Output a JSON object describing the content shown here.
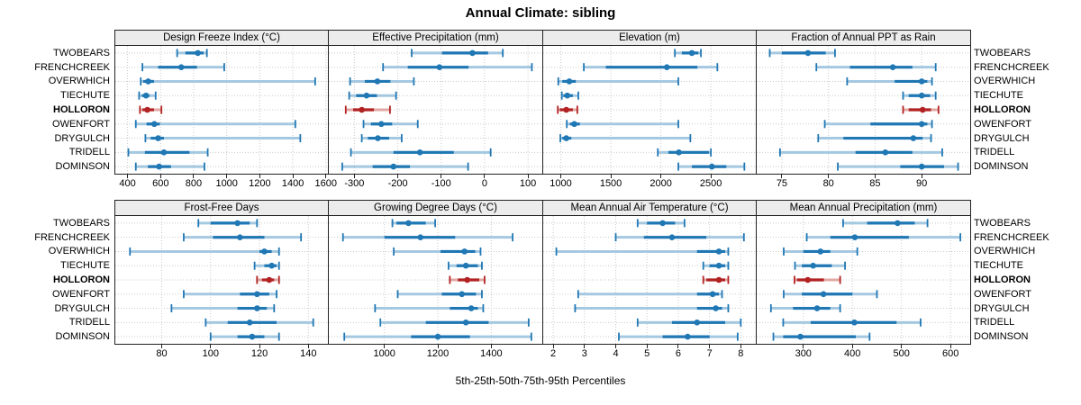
{
  "title": "Annual Climate: sibling",
  "caption": "5th-25th-50th-75th-95th Percentiles",
  "stations": [
    "TWOBEARS",
    "FRENCHCREEK",
    "OVERWHICH",
    "TIECHUTE",
    "HOLLORON",
    "OWENFORT",
    "DRYGULCH",
    "TRIDELL",
    "DOMINSON"
  ],
  "highlight_station": "HOLLORON",
  "colors": {
    "series_blue": "#1F77B4",
    "series_blue_light": "#A5C8E1",
    "highlight_red": "#B22222",
    "highlight_red_light": "#E2A9A4",
    "strip_bg": "#ECECEC",
    "panel_border": "#222222",
    "grid": "#C9C9C9"
  },
  "chart_data": [
    {
      "type": "dotplot-interval",
      "row": 0,
      "col": 0,
      "title": "Design Freeze Index (°C)",
      "xlim": [
        326,
        1612
      ],
      "ticks": [
        400,
        600,
        800,
        1000,
        1200,
        1400,
        1600
      ],
      "percentiles": [
        5,
        25,
        50,
        75,
        95
      ],
      "grid": "dotted",
      "legend_position": "none",
      "series": [
        {
          "station": "TWOBEARS",
          "values": [
            700,
            750,
            825,
            860,
            880
          ]
        },
        {
          "station": "FRENCHCREEK",
          "values": [
            490,
            585,
            725,
            820,
            985
          ]
        },
        {
          "station": "OVERWHICH",
          "values": [
            480,
            495,
            525,
            560,
            1535
          ]
        },
        {
          "station": "TIECHUTE",
          "values": [
            470,
            487,
            512,
            532,
            570
          ]
        },
        {
          "station": "HOLLORON",
          "values": [
            475,
            490,
            520,
            560,
            605
          ]
        },
        {
          "station": "OWENFORT",
          "values": [
            450,
            515,
            562,
            595,
            1415
          ]
        },
        {
          "station": "DRYGULCH",
          "values": [
            508,
            540,
            585,
            620,
            1445
          ]
        },
        {
          "station": "TRIDELL",
          "values": [
            405,
            505,
            620,
            775,
            885
          ]
        },
        {
          "station": "DOMINSON",
          "values": [
            450,
            523,
            591,
            663,
            865
          ]
        }
      ]
    },
    {
      "type": "dotplot-interval",
      "row": 0,
      "col": 1,
      "title": "Effective Precipitation (mm)",
      "xlim": [
        -359,
        133
      ],
      "ticks": [
        -300,
        -200,
        -100,
        0,
        100
      ],
      "percentiles": [
        5,
        25,
        50,
        75,
        95
      ],
      "grid": "dotted",
      "legend_position": "none",
      "series": [
        {
          "station": "TWOBEARS",
          "values": [
            -168,
            -98,
            -28,
            8,
            42
          ]
        },
        {
          "station": "FRENCHCREEK",
          "values": [
            -234,
            -177,
            -104,
            -37,
            109
          ]
        },
        {
          "station": "OVERWHICH",
          "values": [
            -310,
            -276,
            -247,
            -217,
            -163
          ]
        },
        {
          "station": "TIECHUTE",
          "values": [
            -312,
            -296,
            -272,
            -248,
            -204
          ]
        },
        {
          "station": "HOLLORON",
          "values": [
            -320,
            -303,
            -283,
            -255,
            -218
          ]
        },
        {
          "station": "OWENFORT",
          "values": [
            -279,
            -262,
            -238,
            -213,
            -154
          ]
        },
        {
          "station": "DRYGULCH",
          "values": [
            -283,
            -269,
            -246,
            -220,
            -191
          ]
        },
        {
          "station": "TRIDELL",
          "values": [
            -308,
            -210,
            -149,
            -71,
            14
          ]
        },
        {
          "station": "DOMINSON",
          "values": [
            -328,
            -258,
            -210,
            -172,
            -38
          ]
        }
      ]
    },
    {
      "type": "dotplot-interval",
      "row": 0,
      "col": 2,
      "title": "Elevation (m)",
      "xlim": [
        824,
        2949
      ],
      "ticks": [
        1000,
        1500,
        2000,
        2500
      ],
      "percentiles": [
        5,
        25,
        50,
        75,
        95
      ],
      "grid": "dotted",
      "legend_position": "none",
      "series": [
        {
          "station": "TWOBEARS",
          "values": [
            2140,
            2210,
            2310,
            2375,
            2400
          ]
        },
        {
          "station": "FRENCHCREEK",
          "values": [
            1230,
            1450,
            2060,
            2365,
            2565
          ]
        },
        {
          "station": "OVERWHICH",
          "values": [
            975,
            1015,
            1085,
            1150,
            2175
          ]
        },
        {
          "station": "TIECHUTE",
          "values": [
            1010,
            1025,
            1065,
            1120,
            1175
          ]
        },
        {
          "station": "HOLLORON",
          "values": [
            970,
            990,
            1055,
            1120,
            1165
          ]
        },
        {
          "station": "OWENFORT",
          "values": [
            1060,
            1090,
            1135,
            1190,
            2175
          ]
        },
        {
          "station": "DRYGULCH",
          "values": [
            995,
            1015,
            1055,
            1105,
            2295
          ]
        },
        {
          "station": "TRIDELL",
          "values": [
            1970,
            2075,
            2180,
            2480,
            2500
          ]
        },
        {
          "station": "DOMINSON",
          "values": [
            2175,
            2310,
            2510,
            2655,
            2835
          ]
        }
      ]
    },
    {
      "type": "dotplot-interval",
      "row": 0,
      "col": 3,
      "title": "Fraction of Annual PPT as Rain",
      "xlim": [
        72.3,
        95.2
      ],
      "ticks": [
        75,
        80,
        85,
        90
      ],
      "percentiles": [
        5,
        25,
        50,
        75,
        95
      ],
      "grid": "dotted",
      "legend_position": "none",
      "series": [
        {
          "station": "TWOBEARS",
          "values": [
            73.7,
            75.0,
            77.8,
            79.7,
            80.7
          ]
        },
        {
          "station": "FRENCHCREEK",
          "values": [
            78.7,
            82.3,
            86.9,
            89.0,
            91.5
          ]
        },
        {
          "station": "OVERWHICH",
          "values": [
            82.0,
            87.1,
            90.0,
            90.6,
            91.1
          ]
        },
        {
          "station": "TIECHUTE",
          "values": [
            88.0,
            88.6,
            90.0,
            90.9,
            91.5
          ]
        },
        {
          "station": "HOLLORON",
          "values": [
            88.0,
            88.6,
            90.1,
            91.0,
            91.8
          ]
        },
        {
          "station": "OWENFORT",
          "values": [
            79.6,
            84.5,
            90.0,
            90.6,
            91.1
          ]
        },
        {
          "station": "DRYGULCH",
          "values": [
            78.9,
            81.6,
            89.1,
            90.1,
            91.0
          ]
        },
        {
          "station": "TRIDELL",
          "values": [
            74.8,
            82.9,
            86.1,
            89.0,
            92.2
          ]
        },
        {
          "station": "DOMINSON",
          "values": [
            81.0,
            87.7,
            90.0,
            92.4,
            93.9
          ]
        }
      ]
    },
    {
      "type": "dotplot-interval",
      "row": 1,
      "col": 0,
      "title": "Frost-Free Days",
      "xlim": [
        61,
        148
      ],
      "ticks": [
        80,
        100,
        120,
        140
      ],
      "percentiles": [
        5,
        25,
        50,
        75,
        95
      ],
      "grid": "dotted",
      "legend_position": "none",
      "series": [
        {
          "station": "TWOBEARS",
          "values": [
            95,
            100,
            111,
            116,
            119
          ]
        },
        {
          "station": "FRENCHCREEK",
          "values": [
            89,
            101,
            112,
            122,
            137
          ]
        },
        {
          "station": "OVERWHICH",
          "values": [
            67,
            120,
            122,
            125,
            128
          ]
        },
        {
          "station": "TIECHUTE",
          "values": [
            118,
            122,
            125,
            127,
            128
          ]
        },
        {
          "station": "HOLLORON",
          "values": [
            119,
            121,
            124,
            126,
            128
          ]
        },
        {
          "station": "OWENFORT",
          "values": [
            89,
            112,
            119,
            124,
            127
          ]
        },
        {
          "station": "DRYGULCH",
          "values": [
            84,
            111,
            119,
            123,
            126
          ]
        },
        {
          "station": "TRIDELL",
          "values": [
            98,
            107,
            116,
            127,
            142
          ]
        },
        {
          "station": "DOMINSON",
          "values": [
            100,
            111,
            117,
            122,
            128
          ]
        }
      ]
    },
    {
      "type": "dotplot-interval",
      "row": 1,
      "col": 1,
      "title": "Growing Degree Days (°C)",
      "xlim": [
        792,
        1591
      ],
      "ticks": [
        1000,
        1200,
        1400
      ],
      "percentiles": [
        5,
        25,
        50,
        75,
        95
      ],
      "grid": "dotted",
      "legend_position": "none",
      "series": [
        {
          "station": "TWOBEARS",
          "values": [
            1030,
            1045,
            1090,
            1155,
            1190
          ]
        },
        {
          "station": "FRENCHCREEK",
          "values": [
            845,
            1000,
            1135,
            1265,
            1480
          ]
        },
        {
          "station": "OVERWHICH",
          "values": [
            1035,
            1210,
            1300,
            1340,
            1360
          ]
        },
        {
          "station": "TIECHUTE",
          "values": [
            1240,
            1270,
            1305,
            1350,
            1365
          ]
        },
        {
          "station": "HOLLORON",
          "values": [
            1245,
            1275,
            1310,
            1355,
            1375
          ]
        },
        {
          "station": "OWENFORT",
          "values": [
            1050,
            1215,
            1290,
            1343,
            1365
          ]
        },
        {
          "station": "DRYGULCH",
          "values": [
            965,
            1245,
            1325,
            1350,
            1370
          ]
        },
        {
          "station": "TRIDELL",
          "values": [
            985,
            1155,
            1305,
            1390,
            1540
          ]
        },
        {
          "station": "DOMINSON",
          "values": [
            850,
            1100,
            1200,
            1320,
            1550
          ]
        }
      ]
    },
    {
      "type": "dotplot-interval",
      "row": 1,
      "col": 2,
      "title": "Mean Annual Air Temperature (°C)",
      "xlim": [
        1.68,
        8.48
      ],
      "ticks": [
        2,
        3,
        4,
        5,
        6,
        7,
        8
      ],
      "percentiles": [
        5,
        25,
        50,
        75,
        95
      ],
      "grid": "dotted",
      "legend_position": "none",
      "series": [
        {
          "station": "TWOBEARS",
          "values": [
            4.7,
            5.0,
            5.5,
            5.9,
            6.2
          ]
        },
        {
          "station": "FRENCHCREEK",
          "values": [
            4.0,
            4.9,
            5.8,
            6.9,
            8.1
          ]
        },
        {
          "station": "OVERWHICH",
          "values": [
            2.1,
            6.6,
            7.3,
            7.5,
            7.6
          ]
        },
        {
          "station": "TIECHUTE",
          "values": [
            6.8,
            7.0,
            7.3,
            7.5,
            7.6
          ]
        },
        {
          "station": "HOLLORON",
          "values": [
            6.8,
            6.9,
            7.3,
            7.5,
            7.6
          ]
        },
        {
          "station": "OWENFORT",
          "values": [
            2.8,
            6.6,
            7.1,
            7.3,
            7.4
          ]
        },
        {
          "station": "DRYGULCH",
          "values": [
            2.7,
            6.6,
            7.2,
            7.4,
            7.6
          ]
        },
        {
          "station": "TRIDELL",
          "values": [
            4.7,
            5.8,
            6.6,
            7.5,
            8.0
          ]
        },
        {
          "station": "DOMINSON",
          "values": [
            4.1,
            5.5,
            6.3,
            7.0,
            7.9
          ]
        }
      ]
    },
    {
      "type": "dotplot-interval",
      "row": 1,
      "col": 3,
      "title": "Mean Annual Precipitation (mm)",
      "xlim": [
        205,
        640
      ],
      "ticks": [
        300,
        400,
        500,
        600
      ],
      "percentiles": [
        5,
        25,
        50,
        75,
        95
      ],
      "grid": "dotted",
      "legend_position": "none",
      "series": [
        {
          "station": "TWOBEARS",
          "values": [
            381,
            430,
            492,
            527,
            553
          ]
        },
        {
          "station": "FRENCHCREEK",
          "values": [
            307,
            355,
            405,
            515,
            620
          ]
        },
        {
          "station": "OVERWHICH",
          "values": [
            260,
            300,
            335,
            355,
            410
          ]
        },
        {
          "station": "TIECHUTE",
          "values": [
            283,
            297,
            320,
            358,
            385
          ]
        },
        {
          "station": "HOLLORON",
          "values": [
            282,
            287,
            309,
            342,
            375
          ]
        },
        {
          "station": "OWENFORT",
          "values": [
            260,
            297,
            341,
            400,
            450
          ]
        },
        {
          "station": "DRYGULCH",
          "values": [
            234,
            279,
            328,
            355,
            375
          ]
        },
        {
          "station": "TRIDELL",
          "values": [
            259,
            315,
            404,
            490,
            539
          ]
        },
        {
          "station": "DOMINSON",
          "values": [
            239,
            259,
            294,
            407,
            435
          ]
        }
      ]
    }
  ]
}
